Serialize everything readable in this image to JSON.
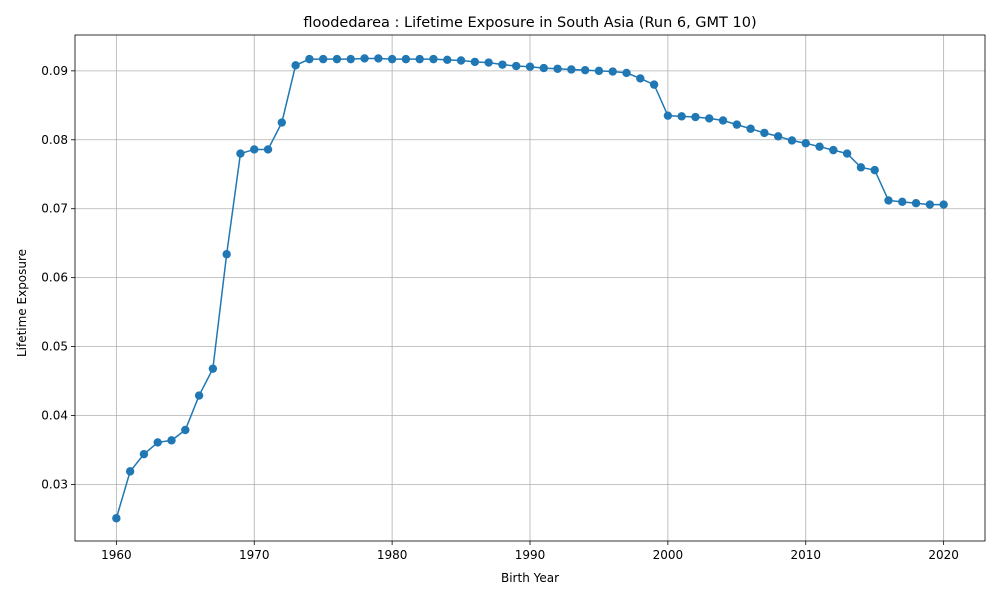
{
  "chart_data": {
    "type": "line",
    "title": "floodedarea : Lifetime Exposure in South Asia (Run 6, GMT 10)",
    "xlabel": "Birth Year",
    "ylabel": "Lifetime Exposure",
    "xlim": [
      1957,
      2023
    ],
    "ylim": [
      0.0218,
      0.0952
    ],
    "xticks": [
      1960,
      1970,
      1980,
      1990,
      2000,
      2010,
      2020
    ],
    "yticks": [
      0.03,
      0.04,
      0.05,
      0.06,
      0.07,
      0.08,
      0.09
    ],
    "ytick_labels": [
      "0.03",
      "0.04",
      "0.05",
      "0.06",
      "0.07",
      "0.08",
      "0.09"
    ],
    "grid": true,
    "marker": "circle",
    "color": "#1f77b4",
    "x": [
      1960,
      1961,
      1962,
      1963,
      1964,
      1965,
      1966,
      1967,
      1968,
      1969,
      1970,
      1971,
      1972,
      1973,
      1974,
      1975,
      1976,
      1977,
      1978,
      1979,
      1980,
      1981,
      1982,
      1983,
      1984,
      1985,
      1986,
      1987,
      1988,
      1989,
      1990,
      1991,
      1992,
      1993,
      1994,
      1995,
      1996,
      1997,
      1998,
      1999,
      2000,
      2001,
      2002,
      2003,
      2004,
      2005,
      2006,
      2007,
      2008,
      2009,
      2010,
      2011,
      2012,
      2013,
      2014,
      2015,
      2016,
      2017,
      2018,
      2019,
      2020
    ],
    "y": [
      0.0251,
      0.0319,
      0.0344,
      0.0361,
      0.0364,
      0.0379,
      0.0429,
      0.0468,
      0.0634,
      0.078,
      0.0786,
      0.0786,
      0.0825,
      0.0908,
      0.0917,
      0.0917,
      0.0917,
      0.0917,
      0.0918,
      0.0918,
      0.0917,
      0.0917,
      0.0917,
      0.0917,
      0.0916,
      0.0915,
      0.0913,
      0.0912,
      0.0909,
      0.0907,
      0.0906,
      0.0904,
      0.0903,
      0.0902,
      0.0901,
      0.09,
      0.0899,
      0.0897,
      0.0889,
      0.088,
      0.0835,
      0.0834,
      0.0833,
      0.0831,
      0.0828,
      0.0822,
      0.0816,
      0.081,
      0.0805,
      0.0799,
      0.0795,
      0.079,
      0.0785,
      0.078,
      0.076,
      0.0756,
      0.0712,
      0.071,
      0.0708,
      0.0706,
      0.0706
    ]
  }
}
